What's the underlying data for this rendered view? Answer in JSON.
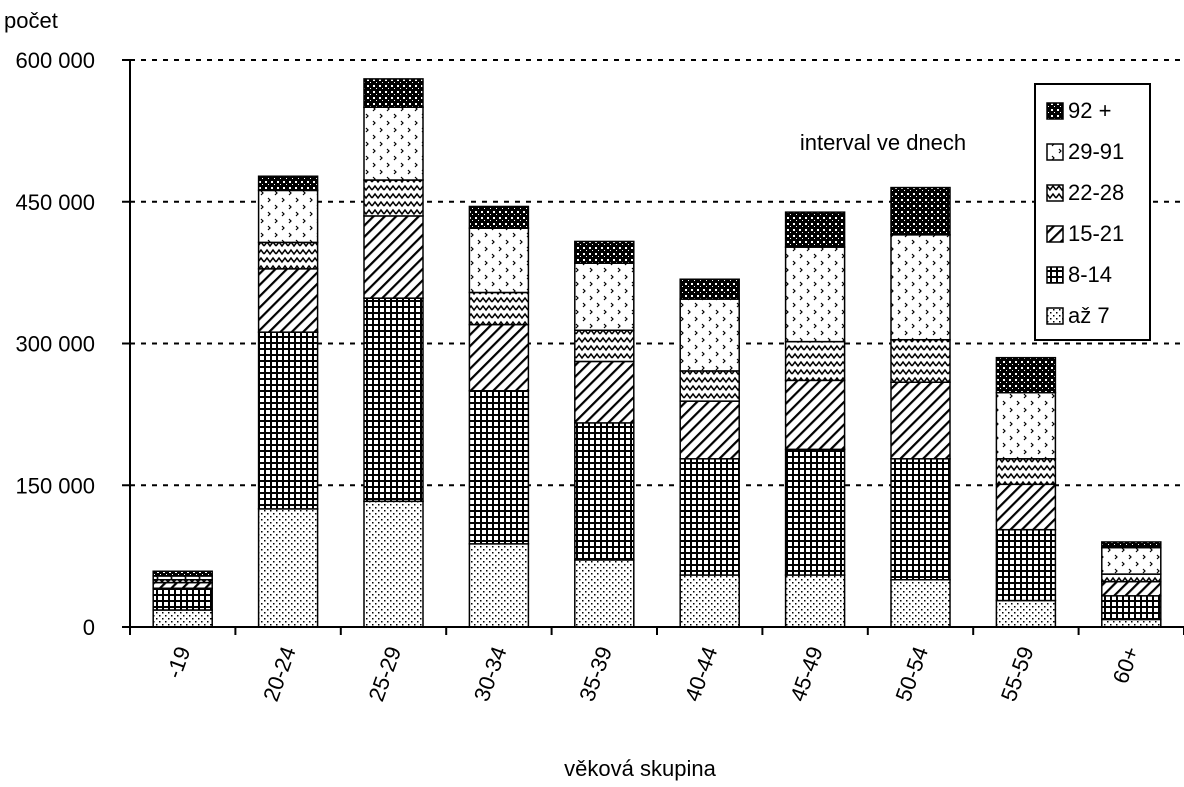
{
  "chart_data": {
    "type": "bar",
    "stacked": true,
    "ylabel": "počet",
    "xlabel": "věková skupina",
    "annotation": "interval ve dnech",
    "ylim": [
      0,
      600000
    ],
    "yticks": [
      0,
      150000,
      300000,
      450000,
      600000
    ],
    "ytick_labels": [
      "0",
      "150 000",
      "300 000",
      "450 000",
      "600 000"
    ],
    "grid": "dashed horizontal at major ticks",
    "legend_position": "top-right",
    "categories": [
      "-19",
      "20-24",
      "25-29",
      "30-34",
      "35-39",
      "40-44",
      "45-49",
      "50-54",
      "55-59",
      "60+"
    ],
    "series": [
      {
        "name": "až 7",
        "values": [
          18000,
          125000,
          133000,
          88000,
          71000,
          55000,
          55000,
          50000,
          28000,
          8000
        ]
      },
      {
        "name": "8-14",
        "values": [
          23000,
          187000,
          215000,
          162000,
          145000,
          123000,
          133000,
          128000,
          75000,
          25000
        ]
      },
      {
        "name": "15-21",
        "values": [
          6000,
          67000,
          87000,
          70000,
          65000,
          61000,
          73000,
          81000,
          48000,
          15000
        ]
      },
      {
        "name": "22-28",
        "values": [
          3000,
          28000,
          38000,
          34000,
          33000,
          32000,
          41000,
          45000,
          27000,
          8000
        ]
      },
      {
        "name": "29-91",
        "values": [
          4000,
          55000,
          77000,
          68000,
          71000,
          76000,
          100000,
          111000,
          70000,
          28000
        ]
      },
      {
        "name": "92 +",
        "values": [
          5000,
          15000,
          30000,
          23000,
          23000,
          21000,
          37000,
          50000,
          37000,
          6000
        ]
      }
    ]
  }
}
